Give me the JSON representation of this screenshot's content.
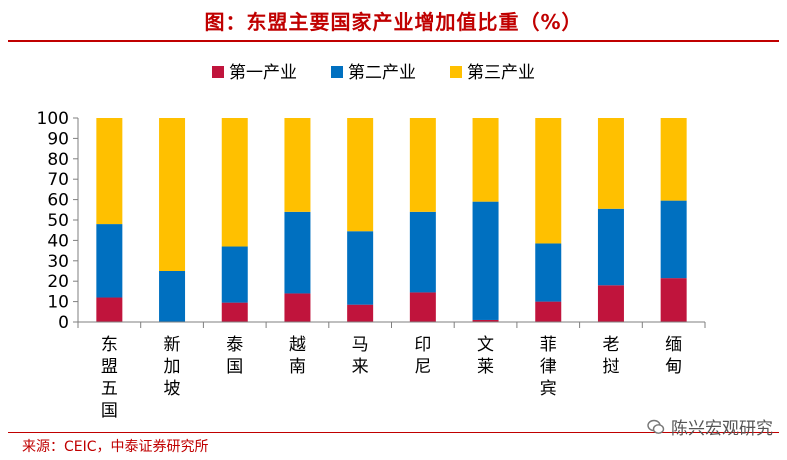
{
  "title": "图：东盟主要国家产业增加值比重（%）",
  "source": "来源：CEIC，中泰证券研究所",
  "watermark": "陈兴宏观研究",
  "chart_data": {
    "type": "bar",
    "stacked": true,
    "title": "图：东盟主要国家产业增加值比重（%）",
    "categories": [
      "东盟五国",
      "新加坡",
      "泰国",
      "越南",
      "马来",
      "印尼",
      "文莱",
      "菲律宾",
      "老挝",
      "缅甸"
    ],
    "series": [
      {
        "name": "第一产业",
        "color": "#c0143c",
        "values": [
          12,
          0,
          9.5,
          14,
          8.5,
          14.5,
          1,
          10,
          18,
          21.5
        ]
      },
      {
        "name": "第二产业",
        "color": "#0070c0",
        "values": [
          36,
          25,
          27.5,
          40,
          36,
          39.5,
          58,
          28.5,
          37.5,
          38
        ]
      },
      {
        "name": "第三产业",
        "color": "#ffc000",
        "values": [
          52,
          75,
          63,
          46,
          55.5,
          46,
          41,
          61.5,
          44.5,
          40.5
        ]
      }
    ],
    "ylim": [
      0,
      100
    ],
    "yticks": [
      0,
      10,
      20,
      30,
      40,
      50,
      60,
      70,
      80,
      90,
      100
    ],
    "legend_position": "top",
    "grid": false
  }
}
